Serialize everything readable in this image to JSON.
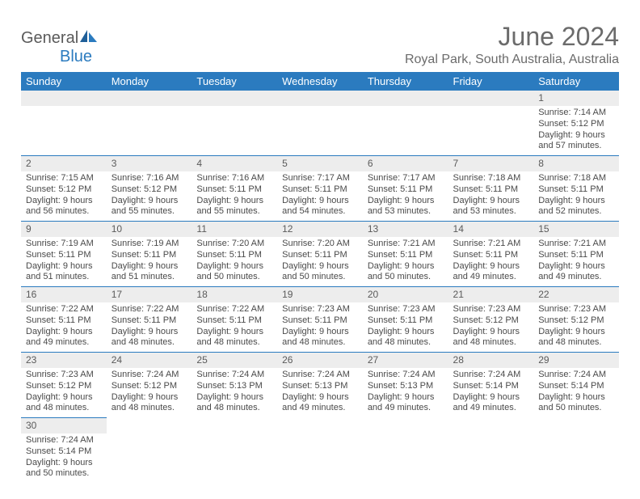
{
  "logo": {
    "general": "General",
    "blue": "Blue"
  },
  "title": "June 2024",
  "location": "Royal Park, South Australia, Australia",
  "accent_color": "#2b7bbf",
  "header_bg": "#2b7bbf",
  "header_text_color": "#ffffff",
  "daynum_bg": "#ededed",
  "body_text_color": "#4a4a4a",
  "day_names": [
    "Sunday",
    "Monday",
    "Tuesday",
    "Wednesday",
    "Thursday",
    "Friday",
    "Saturday"
  ],
  "weeks": [
    {
      "nums": [
        "",
        "",
        "",
        "",
        "",
        "",
        "1"
      ],
      "cells": [
        null,
        null,
        null,
        null,
        null,
        null,
        {
          "sr": "Sunrise: 7:14 AM",
          "ss": "Sunset: 5:12 PM",
          "d1": "Daylight: 9 hours",
          "d2": "and 57 minutes."
        }
      ]
    },
    {
      "nums": [
        "2",
        "3",
        "4",
        "5",
        "6",
        "7",
        "8"
      ],
      "cells": [
        {
          "sr": "Sunrise: 7:15 AM",
          "ss": "Sunset: 5:12 PM",
          "d1": "Daylight: 9 hours",
          "d2": "and 56 minutes."
        },
        {
          "sr": "Sunrise: 7:16 AM",
          "ss": "Sunset: 5:12 PM",
          "d1": "Daylight: 9 hours",
          "d2": "and 55 minutes."
        },
        {
          "sr": "Sunrise: 7:16 AM",
          "ss": "Sunset: 5:11 PM",
          "d1": "Daylight: 9 hours",
          "d2": "and 55 minutes."
        },
        {
          "sr": "Sunrise: 7:17 AM",
          "ss": "Sunset: 5:11 PM",
          "d1": "Daylight: 9 hours",
          "d2": "and 54 minutes."
        },
        {
          "sr": "Sunrise: 7:17 AM",
          "ss": "Sunset: 5:11 PM",
          "d1": "Daylight: 9 hours",
          "d2": "and 53 minutes."
        },
        {
          "sr": "Sunrise: 7:18 AM",
          "ss": "Sunset: 5:11 PM",
          "d1": "Daylight: 9 hours",
          "d2": "and 53 minutes."
        },
        {
          "sr": "Sunrise: 7:18 AM",
          "ss": "Sunset: 5:11 PM",
          "d1": "Daylight: 9 hours",
          "d2": "and 52 minutes."
        }
      ]
    },
    {
      "nums": [
        "9",
        "10",
        "11",
        "12",
        "13",
        "14",
        "15"
      ],
      "cells": [
        {
          "sr": "Sunrise: 7:19 AM",
          "ss": "Sunset: 5:11 PM",
          "d1": "Daylight: 9 hours",
          "d2": "and 51 minutes."
        },
        {
          "sr": "Sunrise: 7:19 AM",
          "ss": "Sunset: 5:11 PM",
          "d1": "Daylight: 9 hours",
          "d2": "and 51 minutes."
        },
        {
          "sr": "Sunrise: 7:20 AM",
          "ss": "Sunset: 5:11 PM",
          "d1": "Daylight: 9 hours",
          "d2": "and 50 minutes."
        },
        {
          "sr": "Sunrise: 7:20 AM",
          "ss": "Sunset: 5:11 PM",
          "d1": "Daylight: 9 hours",
          "d2": "and 50 minutes."
        },
        {
          "sr": "Sunrise: 7:21 AM",
          "ss": "Sunset: 5:11 PM",
          "d1": "Daylight: 9 hours",
          "d2": "and 50 minutes."
        },
        {
          "sr": "Sunrise: 7:21 AM",
          "ss": "Sunset: 5:11 PM",
          "d1": "Daylight: 9 hours",
          "d2": "and 49 minutes."
        },
        {
          "sr": "Sunrise: 7:21 AM",
          "ss": "Sunset: 5:11 PM",
          "d1": "Daylight: 9 hours",
          "d2": "and 49 minutes."
        }
      ]
    },
    {
      "nums": [
        "16",
        "17",
        "18",
        "19",
        "20",
        "21",
        "22"
      ],
      "cells": [
        {
          "sr": "Sunrise: 7:22 AM",
          "ss": "Sunset: 5:11 PM",
          "d1": "Daylight: 9 hours",
          "d2": "and 49 minutes."
        },
        {
          "sr": "Sunrise: 7:22 AM",
          "ss": "Sunset: 5:11 PM",
          "d1": "Daylight: 9 hours",
          "d2": "and 48 minutes."
        },
        {
          "sr": "Sunrise: 7:22 AM",
          "ss": "Sunset: 5:11 PM",
          "d1": "Daylight: 9 hours",
          "d2": "and 48 minutes."
        },
        {
          "sr": "Sunrise: 7:23 AM",
          "ss": "Sunset: 5:11 PM",
          "d1": "Daylight: 9 hours",
          "d2": "and 48 minutes."
        },
        {
          "sr": "Sunrise: 7:23 AM",
          "ss": "Sunset: 5:11 PM",
          "d1": "Daylight: 9 hours",
          "d2": "and 48 minutes."
        },
        {
          "sr": "Sunrise: 7:23 AM",
          "ss": "Sunset: 5:12 PM",
          "d1": "Daylight: 9 hours",
          "d2": "and 48 minutes."
        },
        {
          "sr": "Sunrise: 7:23 AM",
          "ss": "Sunset: 5:12 PM",
          "d1": "Daylight: 9 hours",
          "d2": "and 48 minutes."
        }
      ]
    },
    {
      "nums": [
        "23",
        "24",
        "25",
        "26",
        "27",
        "28",
        "29"
      ],
      "cells": [
        {
          "sr": "Sunrise: 7:23 AM",
          "ss": "Sunset: 5:12 PM",
          "d1": "Daylight: 9 hours",
          "d2": "and 48 minutes."
        },
        {
          "sr": "Sunrise: 7:24 AM",
          "ss": "Sunset: 5:12 PM",
          "d1": "Daylight: 9 hours",
          "d2": "and 48 minutes."
        },
        {
          "sr": "Sunrise: 7:24 AM",
          "ss": "Sunset: 5:13 PM",
          "d1": "Daylight: 9 hours",
          "d2": "and 48 minutes."
        },
        {
          "sr": "Sunrise: 7:24 AM",
          "ss": "Sunset: 5:13 PM",
          "d1": "Daylight: 9 hours",
          "d2": "and 49 minutes."
        },
        {
          "sr": "Sunrise: 7:24 AM",
          "ss": "Sunset: 5:13 PM",
          "d1": "Daylight: 9 hours",
          "d2": "and 49 minutes."
        },
        {
          "sr": "Sunrise: 7:24 AM",
          "ss": "Sunset: 5:14 PM",
          "d1": "Daylight: 9 hours",
          "d2": "and 49 minutes."
        },
        {
          "sr": "Sunrise: 7:24 AM",
          "ss": "Sunset: 5:14 PM",
          "d1": "Daylight: 9 hours",
          "d2": "and 50 minutes."
        }
      ]
    },
    {
      "nums": [
        "30",
        "",
        "",
        "",
        "",
        "",
        ""
      ],
      "cells": [
        {
          "sr": "Sunrise: 7:24 AM",
          "ss": "Sunset: 5:14 PM",
          "d1": "Daylight: 9 hours",
          "d2": "and 50 minutes."
        },
        null,
        null,
        null,
        null,
        null,
        null
      ]
    }
  ]
}
